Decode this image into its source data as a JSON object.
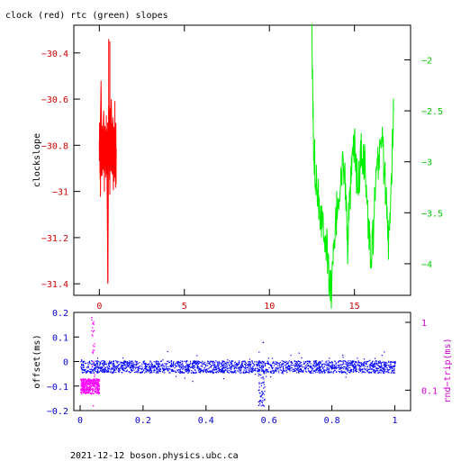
{
  "title": "clock (red) rtc (green) slopes",
  "footer": "2021-12-12  boson.physics.ubc.ca",
  "colors": {
    "clock": "#ff0000",
    "rtc": "#00ee00",
    "offset": "#0000ff",
    "roundtrip": "#ff00ff",
    "frame": "#000000",
    "left_axis_top": "#cc0000",
    "right_axis_top": "#00cc00",
    "axis_bottom": "#0000cc",
    "right_axis_bottom": "#cc00cc"
  },
  "chart_data": [
    {
      "type": "line",
      "title": "clock (red) rtc (green) slopes",
      "xlim": [
        -1.5,
        18.3
      ],
      "xticks": [
        0,
        5,
        10,
        15
      ],
      "ylabel": "clockslope",
      "ylim": [
        -31.45,
        -30.28
      ],
      "yticks": [
        -30.4,
        -30.6,
        -30.8,
        -31,
        -31.2,
        -31.4
      ],
      "ytick_labels": [
        "−30.4",
        "−30.6",
        "−30.8",
        "−31",
        "−31.2",
        "−31.4"
      ],
      "y2lim": [
        -4.31,
        -1.66
      ],
      "y2ticks": [
        -2,
        -2.5,
        -3,
        -3.5,
        -4
      ],
      "y2tick_labels": [
        "−2",
        "−2.5",
        "−3",
        "−3.5",
        "−4"
      ],
      "series": [
        {
          "color_key": "clock",
          "axis": "left",
          "x_range": [
            0,
            1.0
          ],
          "y_center": -30.82,
          "y_spread": 0.12,
          "points": [
            [
              0.05,
              -30.75
            ],
            [
              0.1,
              -30.55
            ],
            [
              0.15,
              -30.92
            ],
            [
              0.2,
              -30.8
            ],
            [
              0.25,
              -30.65
            ],
            [
              0.3,
              -30.88
            ],
            [
              0.35,
              -30.78
            ],
            [
              0.4,
              -30.72
            ],
            [
              0.45,
              -30.9
            ],
            [
              0.5,
              -31.4
            ],
            [
              0.55,
              -30.7
            ],
            [
              0.6,
              -30.95
            ],
            [
              0.65,
              -30.8
            ],
            [
              0.7,
              -30.6
            ],
            [
              0.75,
              -30.85
            ],
            [
              0.8,
              -30.9
            ],
            [
              0.85,
              -30.72
            ],
            [
              0.9,
              -30.94
            ],
            [
              0.95,
              -30.8
            ],
            [
              1.0,
              -30.82
            ]
          ]
        },
        {
          "color_key": "rtc",
          "axis": "right",
          "x_range": [
            12.5,
            17.3
          ],
          "points": [
            [
              12.5,
              -1.84
            ],
            [
              12.6,
              -2.9
            ],
            [
              12.8,
              -3.2
            ],
            [
              13.0,
              -3.5
            ],
            [
              13.2,
              -3.6
            ],
            [
              13.4,
              -3.9
            ],
            [
              13.6,
              -4.3
            ],
            [
              13.8,
              -3.9
            ],
            [
              14.0,
              -3.4
            ],
            [
              14.2,
              -3.2
            ],
            [
              14.4,
              -3.0
            ],
            [
              14.6,
              -3.8
            ],
            [
              14.8,
              -3.2
            ],
            [
              15.0,
              -2.8
            ],
            [
              15.2,
              -3.3
            ],
            [
              15.4,
              -2.9
            ],
            [
              15.6,
              -3.0
            ],
            [
              15.8,
              -3.6
            ],
            [
              16.0,
              -4.0
            ],
            [
              16.2,
              -3.4
            ],
            [
              16.4,
              -3.0
            ],
            [
              16.6,
              -2.7
            ],
            [
              16.8,
              -3.2
            ],
            [
              17.0,
              -3.8
            ],
            [
              17.2,
              -3.0
            ],
            [
              17.3,
              -2.5
            ]
          ]
        }
      ]
    },
    {
      "type": "scatter",
      "xlim": [
        -0.02,
        1.05
      ],
      "xticks": [
        0,
        0.2,
        0.4,
        0.6,
        0.8,
        1
      ],
      "xtick_labels": [
        "0",
        "0.2",
        "0.4",
        "0.6",
        "0.8",
        "1"
      ],
      "ylabel": "offset(ms)",
      "ylim": [
        -0.2,
        0.2
      ],
      "yticks": [
        0.2,
        0.1,
        0,
        -0.1,
        -0.2
      ],
      "ytick_labels": [
        "0.2",
        "0.1",
        "0",
        "−0.1",
        "−0.2"
      ],
      "y2label": "rnd−trip(ms)",
      "y2scale": "log",
      "y2lim": [
        0.05,
        1.4
      ],
      "y2ticks": [
        1,
        0.1
      ],
      "y2tick_labels": [
        "1",
        "0.1"
      ],
      "series": [
        {
          "color_key": "offset",
          "axis": "left",
          "x_range": [
            0,
            1
          ],
          "y_center": -0.02,
          "y_spread": 0.025,
          "excursions": [
            [
              0.57,
              -0.16
            ],
            [
              0.58,
              0.08
            ],
            [
              0.03,
              -0.04
            ]
          ]
        },
        {
          "color_key": "roundtrip",
          "axis": "right",
          "x_range": [
            0,
            0.06
          ],
          "y_center": 0.12,
          "y_spread": 0.03,
          "excursions": [
            [
              0.035,
              1.2
            ],
            [
              0.04,
              0.06
            ]
          ]
        }
      ]
    }
  ]
}
